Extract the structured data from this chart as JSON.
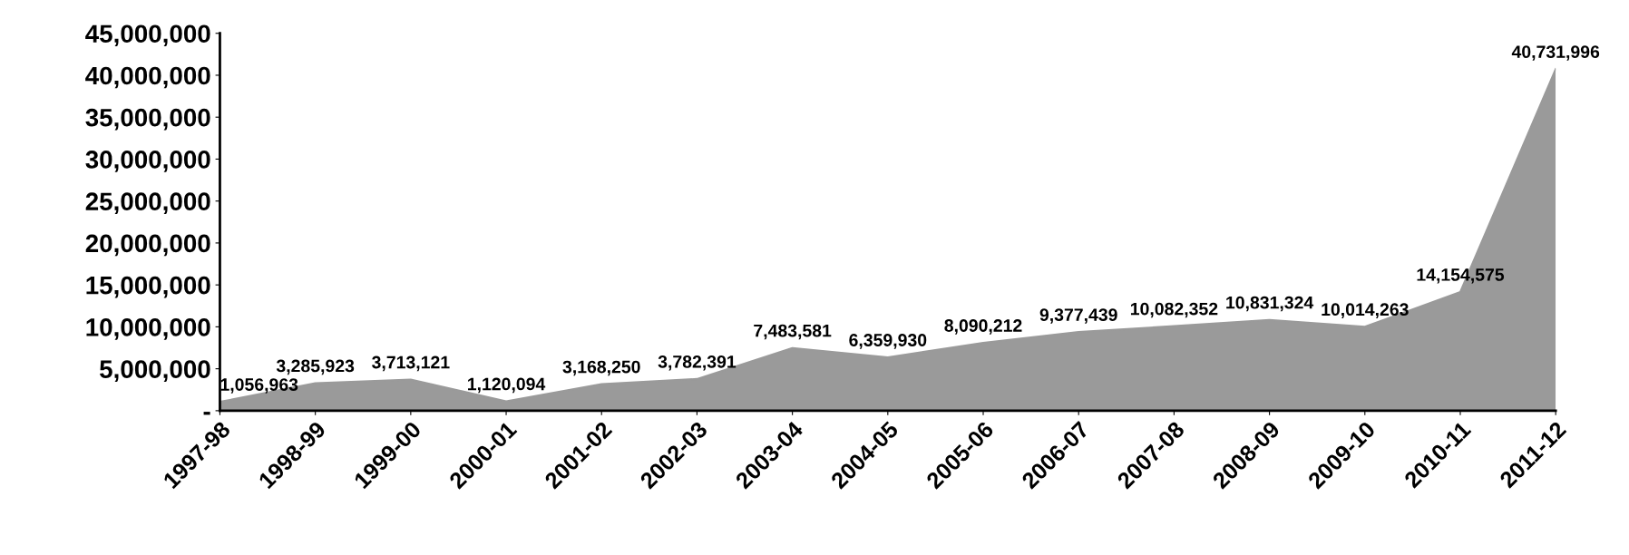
{
  "chart_data": {
    "type": "area",
    "categories": [
      "1997-98",
      "1998-99",
      "1999-00",
      "2000-01",
      "2001-02",
      "2002-03",
      "2003-04",
      "2004-05",
      "2005-06",
      "2006-07",
      "2007-08",
      "2008-09",
      "2009-10",
      "2010-11",
      "2011-12"
    ],
    "series": [
      {
        "color": "#9a9a9a",
        "values": [
          1056963,
          3285923,
          3713121,
          1120094,
          3168250,
          3782391,
          7483581,
          6359930,
          8090212,
          9377439,
          10082352,
          10831324,
          10014263,
          14154575,
          40731996
        ]
      }
    ],
    "value_labels": [
      "1,056,963",
      "3,285,923",
      "3,713,121",
      "1,120,094",
      "3,168,250",
      "3,782,391",
      "7,483,581",
      "6,359,930",
      "8,090,212",
      "9,377,439",
      "10,082,352",
      "10,831,324",
      "10,014,263",
      "14,154,575",
      "40,731,996"
    ],
    "ylim": [
      0,
      45000000
    ],
    "yticks": [
      {
        "value": 0,
        "label": "-"
      },
      {
        "value": 5000000,
        "label": "5,000,000"
      },
      {
        "value": 10000000,
        "label": "10,000,000"
      },
      {
        "value": 15000000,
        "label": "15,000,000"
      },
      {
        "value": 20000000,
        "label": "20,000,000"
      },
      {
        "value": 25000000,
        "label": "25,000,000"
      },
      {
        "value": 30000000,
        "label": "30,000,000"
      },
      {
        "value": 35000000,
        "label": "35,000,000"
      },
      {
        "value": 40000000,
        "label": "40,000,000"
      },
      {
        "value": 45000000,
        "label": "45,000,000"
      }
    ],
    "grid": false
  }
}
